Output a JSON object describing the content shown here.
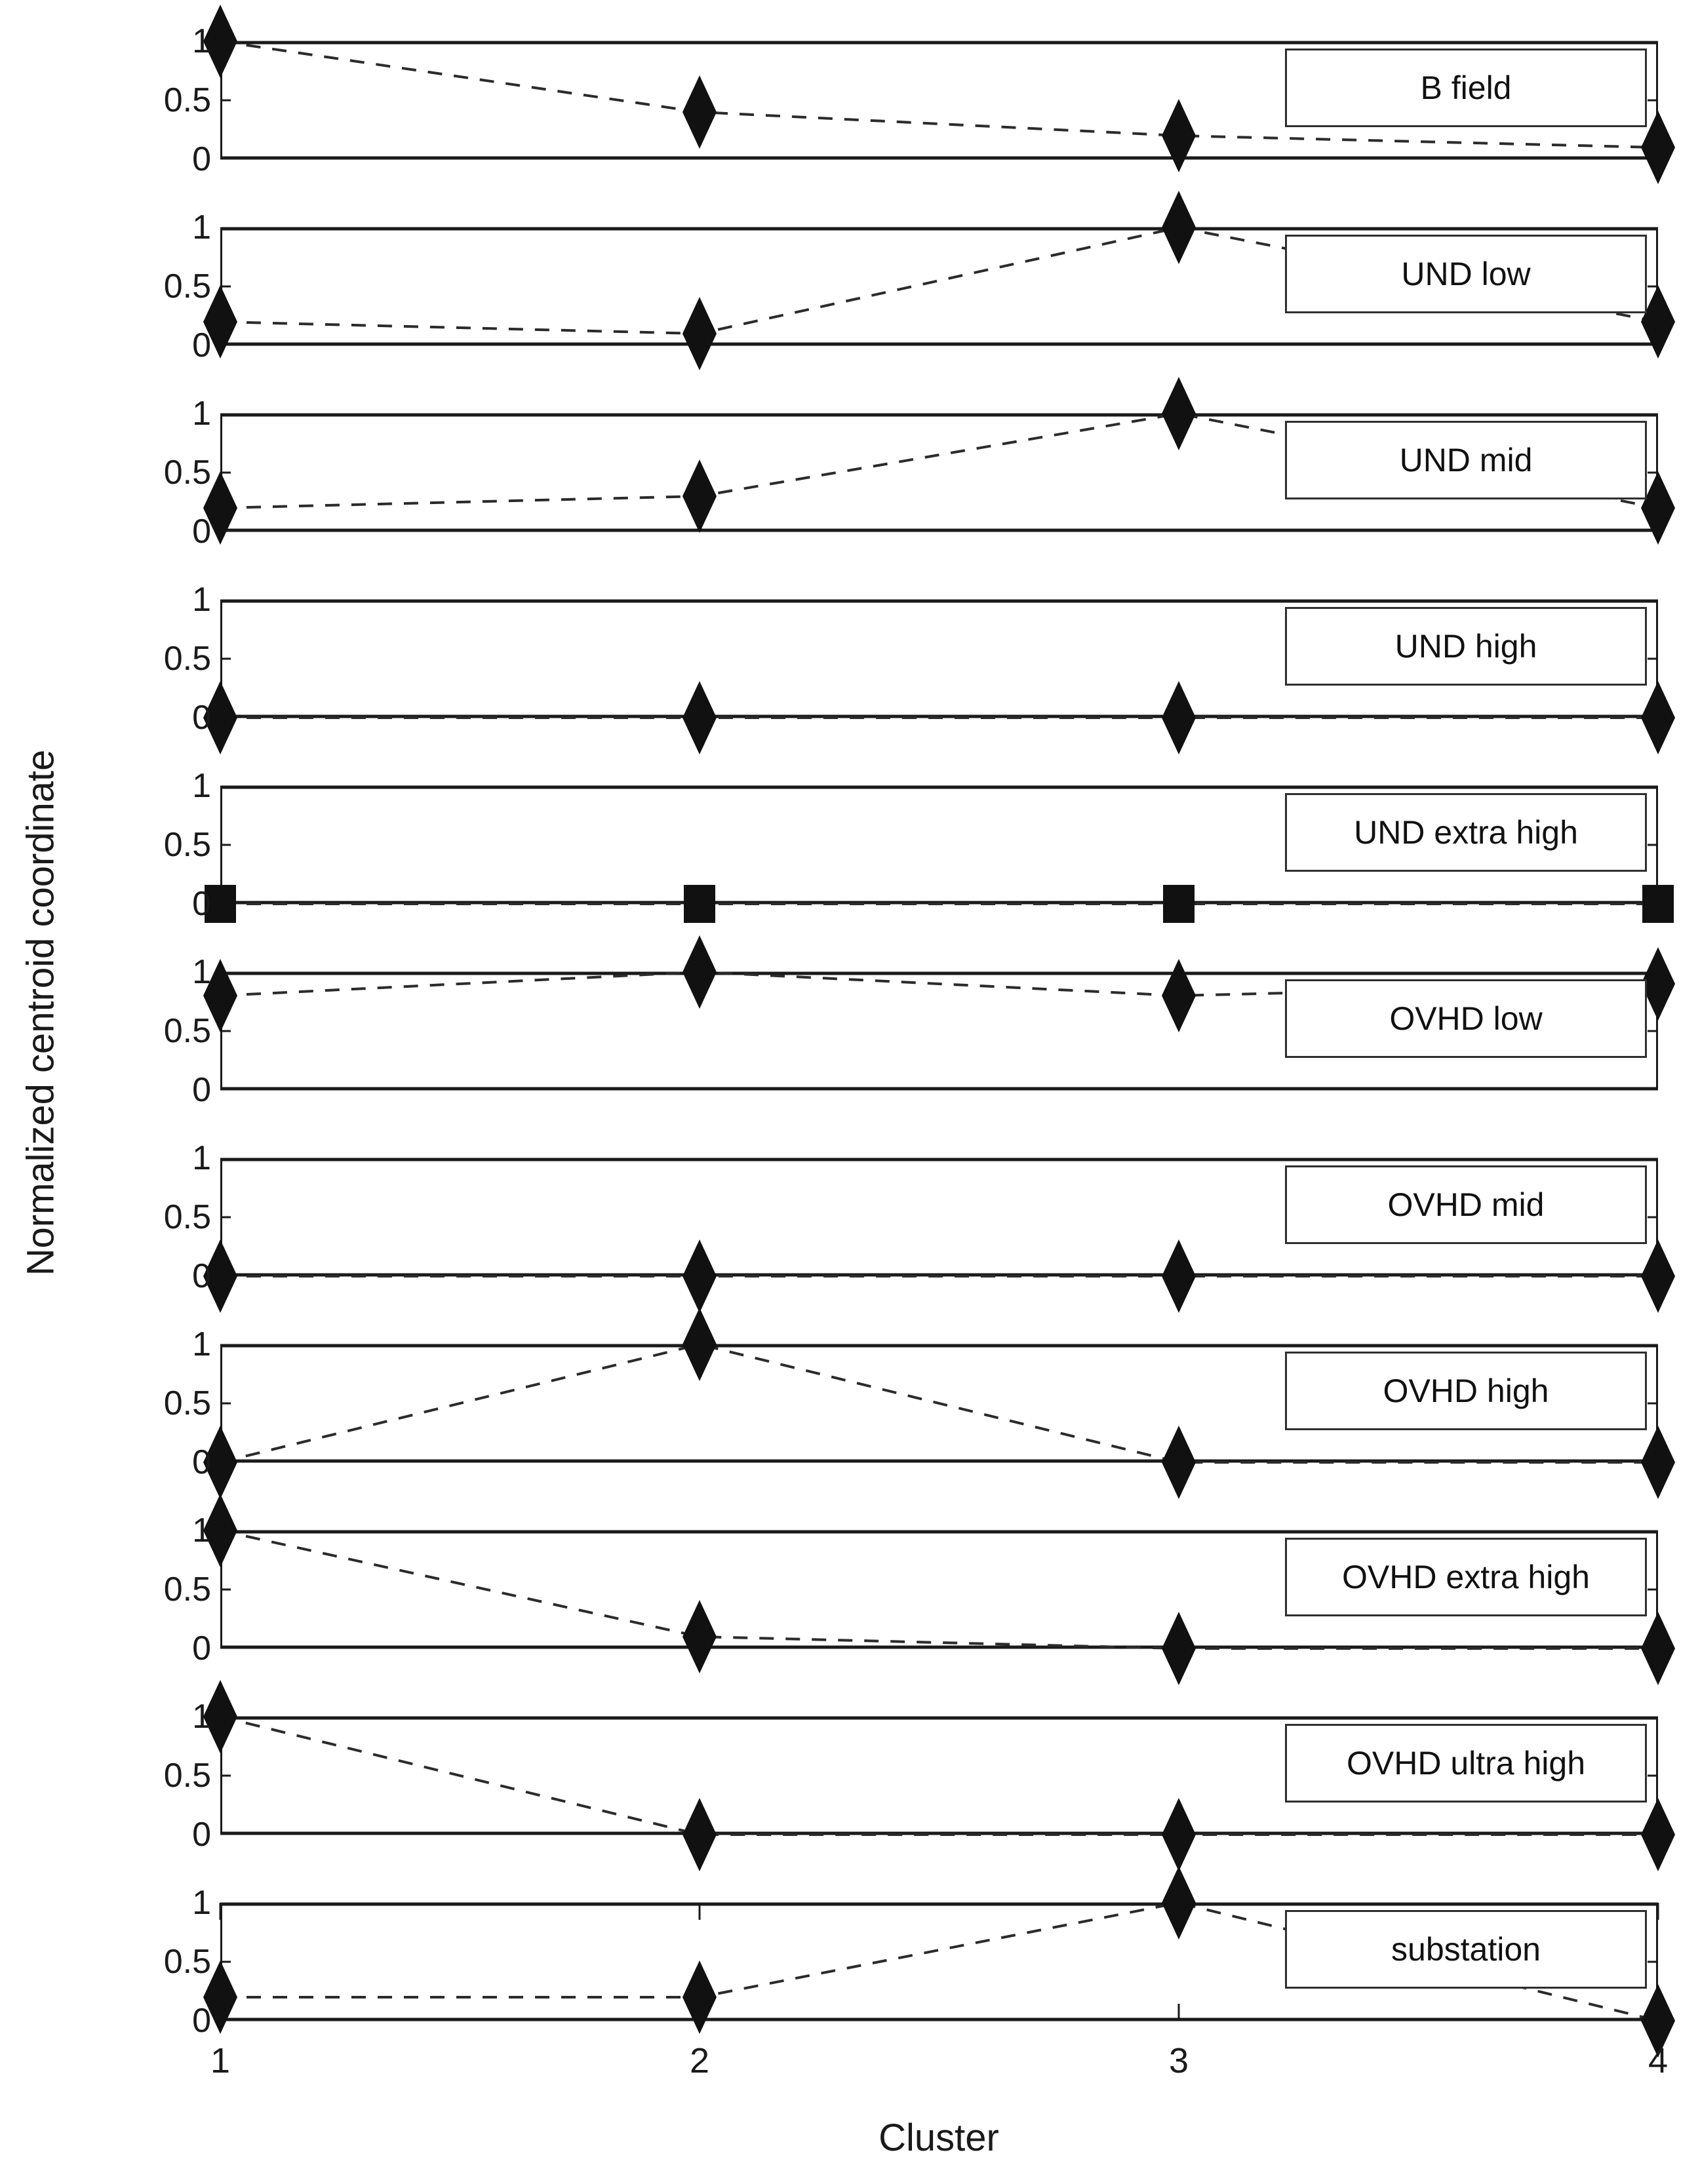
{
  "chart_data": {
    "type": "line",
    "layout_style": "stacked-subplots",
    "x": [
      1,
      2,
      3,
      4
    ],
    "xlabel": "Cluster",
    "ylabel": "Normalized centroid coordinate",
    "ylim": [
      0,
      1
    ],
    "y_tick_labels": [
      "1",
      "0.5",
      "0"
    ],
    "x_tick_labels": [
      "1",
      "2",
      "3",
      "4"
    ],
    "line_style": "dashed",
    "grid": "off",
    "legend_position": "upper-right-inside-box",
    "series": [
      {
        "name": "B field",
        "marker": "diamond",
        "values": [
          1.0,
          0.4,
          0.2,
          0.1
        ]
      },
      {
        "name": "UND low",
        "marker": "diamond",
        "values": [
          0.2,
          0.1,
          1.0,
          0.2
        ]
      },
      {
        "name": "UND mid",
        "marker": "diamond",
        "values": [
          0.2,
          0.3,
          1.0,
          0.2
        ]
      },
      {
        "name": "UND high",
        "marker": "diamond",
        "values": [
          0.0,
          0.0,
          0.0,
          0.0
        ]
      },
      {
        "name": "UND extra high",
        "marker": "square",
        "values": [
          0.0,
          0.0,
          0.0,
          0.0
        ]
      },
      {
        "name": "OVHD low",
        "marker": "diamond",
        "values": [
          0.8,
          1.0,
          0.8,
          0.9
        ]
      },
      {
        "name": "OVHD mid",
        "marker": "diamond",
        "values": [
          0.0,
          0.0,
          0.0,
          0.0
        ]
      },
      {
        "name": "OVHD high",
        "marker": "diamond",
        "values": [
          0.0,
          1.0,
          0.0,
          0.0
        ]
      },
      {
        "name": "OVHD extra high",
        "marker": "diamond",
        "values": [
          1.0,
          0.1,
          0.0,
          0.0
        ]
      },
      {
        "name": "OVHD ultra high",
        "marker": "diamond",
        "values": [
          1.0,
          0.0,
          0.0,
          0.0
        ]
      },
      {
        "name": "substation",
        "marker": "diamond",
        "values": [
          0.2,
          0.2,
          1.0,
          0.0
        ]
      }
    ]
  },
  "colors": {
    "background": "#ffffff",
    "axis": "#1a1a1a",
    "line": "#2b2b2b",
    "marker": "#111111",
    "text": "#1a1a1a",
    "legend_border": "#2f2f2f"
  }
}
